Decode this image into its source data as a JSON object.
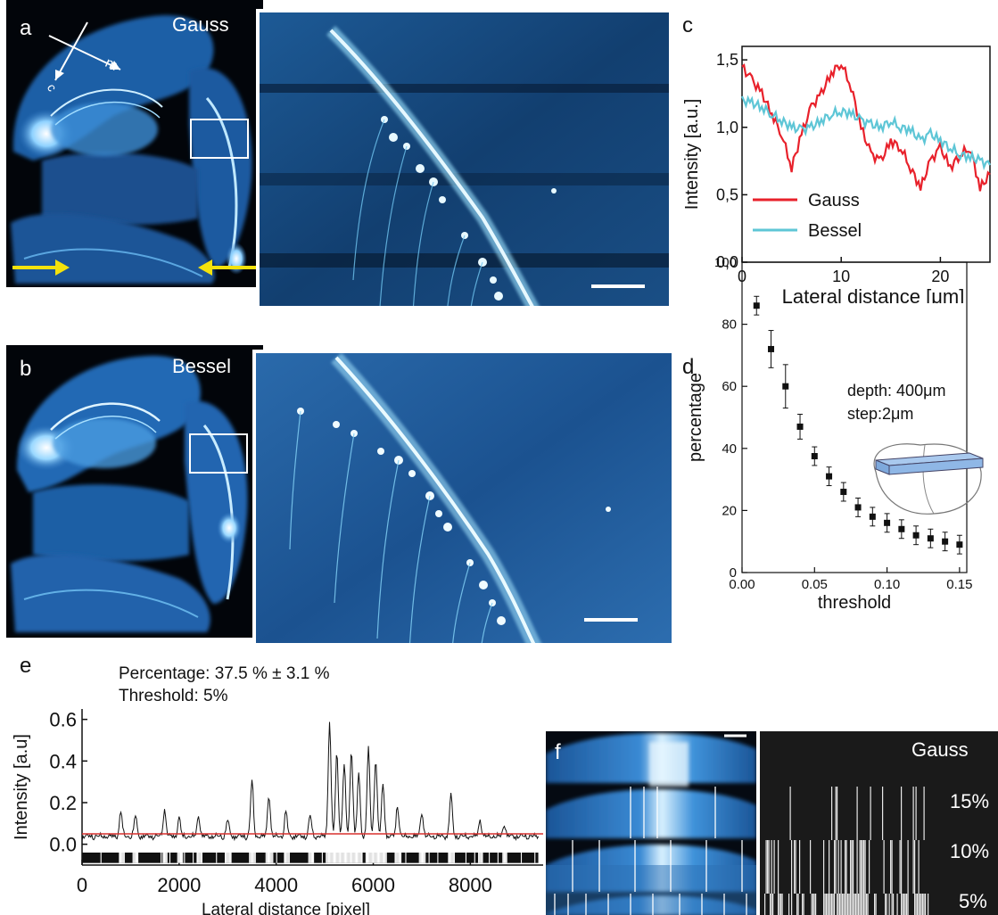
{
  "panels": {
    "a": {
      "label": "a",
      "title": "Gauss",
      "axis_c": "c",
      "axis_m": "m"
    },
    "b": {
      "label": "b",
      "title": "Bessel"
    },
    "c": {
      "label": "c"
    },
    "d": {
      "label": "d"
    },
    "e": {
      "label": "e",
      "percentage_text": "Percentage: 37.5 % ± 3.1 %",
      "threshold_text": "Threshold: 5%"
    },
    "f": {
      "label": "f",
      "title": "Gauss",
      "levels": [
        "15%",
        "10%",
        "5%"
      ]
    }
  },
  "colors": {
    "gauss": "#e8212b",
    "bessel": "#5ec6d6",
    "tissue": "#2a73c0",
    "threshold_line": "#d9302e"
  },
  "chart_data": [
    {
      "id": "c",
      "type": "line",
      "xlabel": "Lateral distance [μm]",
      "ylabel": "Intensity [a.u.]",
      "xlim": [
        0,
        25
      ],
      "ylim": [
        0.0,
        1.6
      ],
      "xticks": [
        0,
        10,
        20
      ],
      "yticks": [
        "0,0",
        "0,5",
        "1,0",
        "1,5"
      ],
      "legend_position": "bottom-left",
      "series": [
        {
          "name": "Gauss",
          "color": "#e8212b",
          "x": [
            0,
            1,
            2,
            3,
            4,
            5,
            6,
            7,
            8,
            9,
            10,
            11,
            12,
            13,
            14,
            15,
            16,
            17,
            18,
            19,
            20,
            21,
            22,
            23,
            24,
            25
          ],
          "values": [
            1.45,
            1.35,
            1.25,
            1.1,
            0.95,
            0.7,
            0.95,
            1.15,
            1.25,
            1.4,
            1.48,
            1.3,
            1.0,
            0.8,
            0.75,
            0.9,
            0.85,
            0.7,
            0.55,
            0.75,
            0.85,
            0.7,
            0.8,
            0.85,
            0.55,
            0.65
          ]
        },
        {
          "name": "Bessel",
          "color": "#5ec6d6",
          "x": [
            0,
            1,
            2,
            3,
            4,
            5,
            6,
            7,
            8,
            9,
            10,
            11,
            12,
            13,
            14,
            15,
            16,
            17,
            18,
            19,
            20,
            21,
            22,
            23,
            24,
            25
          ],
          "values": [
            1.2,
            1.18,
            1.15,
            1.1,
            1.05,
            1.0,
            0.98,
            1.0,
            1.05,
            1.1,
            1.12,
            1.1,
            1.05,
            1.02,
            1.0,
            1.05,
            1.0,
            0.98,
            0.9,
            0.95,
            0.9,
            0.85,
            0.8,
            0.78,
            0.75,
            0.72
          ]
        }
      ]
    },
    {
      "id": "d",
      "type": "scatter",
      "xlabel": "threshold",
      "ylabel": "percentage",
      "xlim": [
        0.0,
        0.155
      ],
      "ylim": [
        0,
        100
      ],
      "xticks": [
        "0.00",
        "0.05",
        "0.10",
        "0.15"
      ],
      "yticks": [
        0,
        20,
        40,
        60,
        80,
        100
      ],
      "annotations": [
        "depth: 400μm",
        "step:2μm"
      ],
      "x": [
        0.01,
        0.02,
        0.03,
        0.04,
        0.05,
        0.06,
        0.07,
        0.08,
        0.09,
        0.1,
        0.11,
        0.12,
        0.13,
        0.14,
        0.15
      ],
      "values": [
        86,
        72,
        60,
        47,
        37.5,
        31,
        26,
        21,
        18,
        16,
        14,
        12,
        11,
        10,
        9
      ],
      "errors": [
        3,
        6,
        7,
        4,
        3,
        3,
        3,
        3,
        3,
        3,
        3,
        3,
        3,
        3,
        3
      ]
    },
    {
      "id": "e",
      "type": "line",
      "xlabel": "Lateral distance [pixel]",
      "ylabel": "Intensity [a.u]",
      "xlim": [
        0,
        9500
      ],
      "ylim": [
        -0.1,
        0.65
      ],
      "xticks": [
        0,
        2000,
        4000,
        6000,
        8000
      ],
      "yticks": [
        "0.0",
        "0.2",
        "0.4",
        "0.6"
      ],
      "threshold": 0.05,
      "peaks": [
        [
          800,
          0.12
        ],
        [
          1100,
          0.1
        ],
        [
          1700,
          0.13
        ],
        [
          2000,
          0.09
        ],
        [
          2400,
          0.1
        ],
        [
          3000,
          0.08
        ],
        [
          3500,
          0.27
        ],
        [
          3850,
          0.2
        ],
        [
          4200,
          0.12
        ],
        [
          4700,
          0.1
        ],
        [
          5100,
          0.56
        ],
        [
          5250,
          0.4
        ],
        [
          5400,
          0.35
        ],
        [
          5550,
          0.42
        ],
        [
          5700,
          0.3
        ],
        [
          5900,
          0.42
        ],
        [
          6050,
          0.38
        ],
        [
          6200,
          0.25
        ],
        [
          6500,
          0.15
        ],
        [
          7000,
          0.12
        ],
        [
          7600,
          0.2
        ],
        [
          8200,
          0.08
        ],
        [
          8700,
          0.06
        ]
      ]
    }
  ]
}
